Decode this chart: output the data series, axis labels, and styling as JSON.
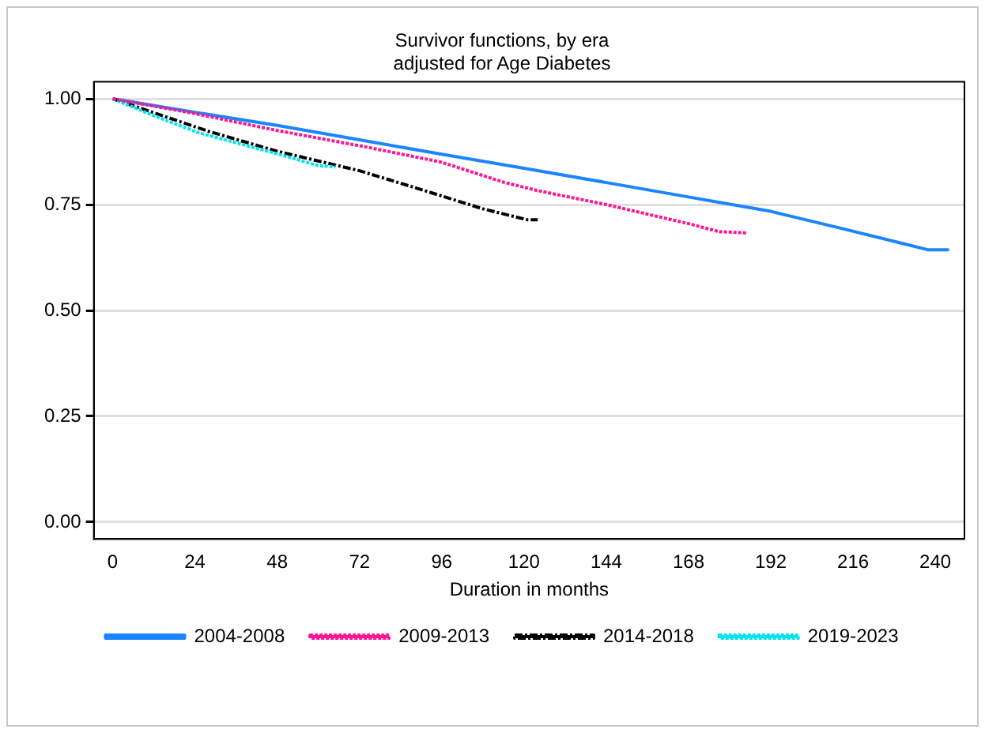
{
  "chart_data": {
    "type": "line",
    "title": "Survivor functions, by era",
    "subtitle": "adjusted for Age Diabetes",
    "xlabel": "Duration in months",
    "xlim": [
      -5.5,
      248.5
    ],
    "xticks": [
      0,
      24,
      48,
      72,
      96,
      120,
      144,
      168,
      192,
      216,
      240
    ],
    "ylim": [
      -0.04,
      1.04
    ],
    "yticks": [
      {
        "value": 0,
        "label": "0.00"
      },
      {
        "value": 0.25,
        "label": "0.25"
      },
      {
        "value": 0.5,
        "label": "0.50"
      },
      {
        "value": 0.75,
        "label": "0.75"
      },
      {
        "value": 1,
        "label": "1.00"
      }
    ],
    "grid": "y",
    "legend": "bottom",
    "marker": "none",
    "series": [
      {
        "name": "2004-2008",
        "color": "#1a85ff",
        "line_style": "solid",
        "x": [
          0,
          24,
          48,
          72,
          96,
          120,
          144,
          168,
          192,
          214,
          230,
          238,
          244
        ],
        "values": [
          1,
          0.968,
          0.937,
          0.903,
          0.869,
          0.836,
          0.802,
          0.768,
          0.734,
          0.691,
          0.659,
          0.643,
          0.643
        ]
      },
      {
        "name": "2009-2013",
        "color": "#ff1493",
        "line_style": "dotted",
        "x": [
          0,
          24,
          48,
          74,
          96,
          114,
          124,
          144,
          168,
          177,
          185
        ],
        "values": [
          1,
          0.965,
          0.925,
          0.886,
          0.85,
          0.803,
          0.783,
          0.75,
          0.705,
          0.686,
          0.683
        ]
      },
      {
        "name": "2014-2018",
        "color": "#000000",
        "line_style": "dashdot",
        "x": [
          0,
          28,
          48,
          72,
          91,
          108,
          121,
          124
        ],
        "values": [
          1,
          0.923,
          0.876,
          0.83,
          0.783,
          0.74,
          0.714,
          0.714
        ]
      },
      {
        "name": "2019-2023",
        "color": "#00e5ee",
        "line_style": "dotted",
        "x": [
          0,
          12,
          25,
          48,
          60,
          65
        ],
        "values": [
          1,
          0.96,
          0.92,
          0.87,
          0.842,
          0.839
        ]
      }
    ]
  }
}
